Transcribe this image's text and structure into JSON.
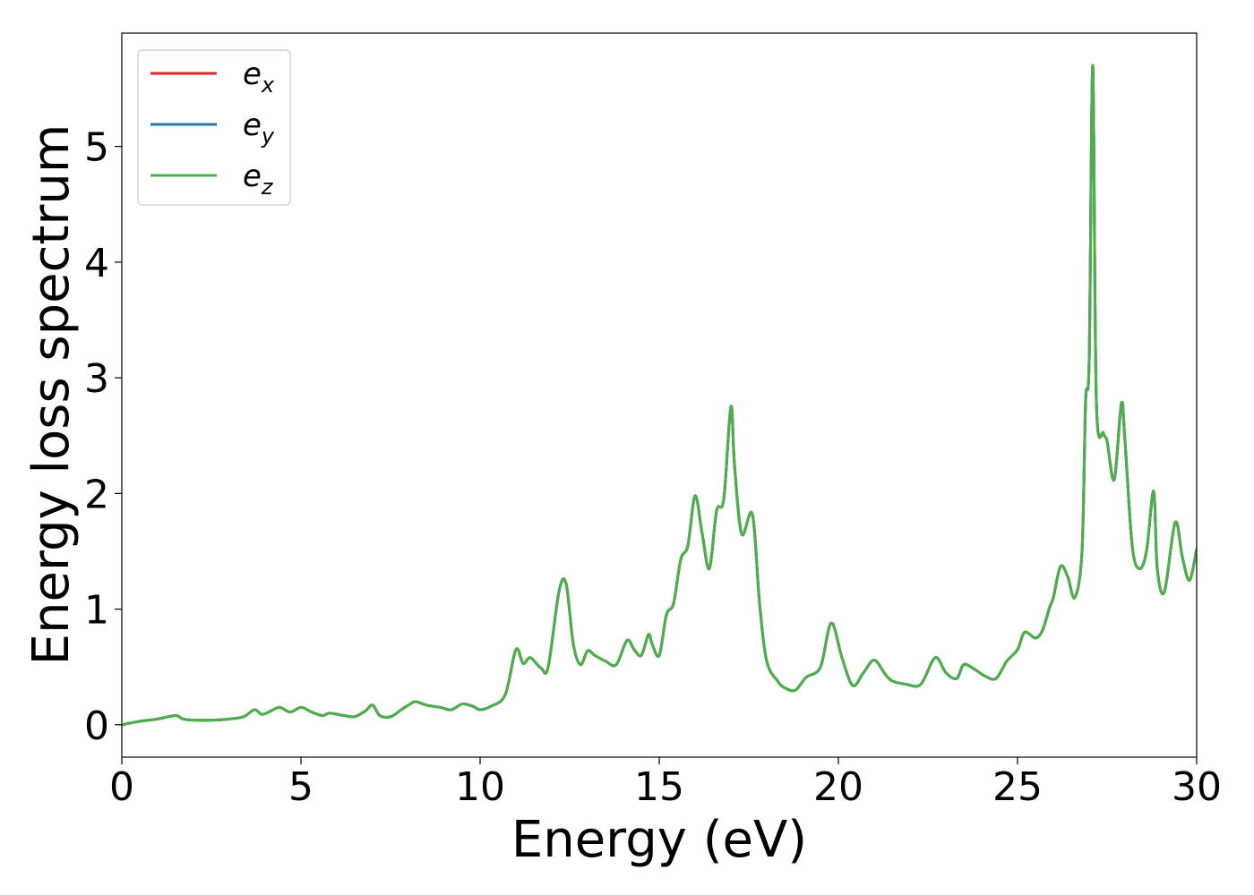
{
  "chart_data": {
    "type": "line",
    "title": "",
    "xlabel": "Energy (eV)",
    "ylabel": "Energy loss spectrum",
    "xlim": [
      0,
      30
    ],
    "ylim": [
      -0.28,
      5.98
    ],
    "xticks": [
      "0",
      "5",
      "10",
      "15",
      "20",
      "25",
      "30"
    ],
    "yticks": [
      "0",
      "1",
      "2",
      "3",
      "4",
      "5"
    ],
    "grid": false,
    "legend_position": "top-left",
    "legend": [
      {
        "base": "e",
        "sub": "x",
        "color": "#d62728"
      },
      {
        "base": "e",
        "sub": "y",
        "color": "#1f77b4"
      },
      {
        "base": "e",
        "sub": "z",
        "color": "#4daf4a"
      }
    ],
    "x": [
      0,
      0.5,
      1,
      1.5,
      1.7,
      2,
      2.5,
      3,
      3.4,
      3.7,
      3.9,
      4.1,
      4.4,
      4.7,
      5,
      5.3,
      5.6,
      5.8,
      6.2,
      6.5,
      6.8,
      7,
      7.2,
      7.5,
      7.8,
      8,
      8.2,
      8.5,
      8.9,
      9.2,
      9.5,
      9.8,
      10,
      10.3,
      10.7,
      11,
      11.2,
      11.4,
      11.7,
      11.9,
      12.2,
      12.4,
      12.6,
      12.8,
      13,
      13.2,
      13.5,
      13.8,
      14.1,
      14.3,
      14.5,
      14.7,
      14.8,
      15,
      15.2,
      15.4,
      15.6,
      15.8,
      16,
      16.2,
      16.4,
      16.6,
      16.8,
      17,
      17.1,
      17.3,
      17.6,
      17.8,
      18,
      18.3,
      18.5,
      18.8,
      19.1,
      19.5,
      19.8,
      20.1,
      20.4,
      20.7,
      21,
      21.3,
      21.5,
      21.9,
      22.3,
      22.7,
      23,
      23.3,
      23.5,
      23.8,
      24.1,
      24.4,
      24.7,
      25,
      25.2,
      25.5,
      25.7,
      25.9,
      26,
      26.2,
      26.4,
      26.6,
      26.8,
      26.9,
      27,
      27.1,
      27.2,
      27.4,
      27.5,
      27.7,
      27.9,
      28,
      28.2,
      28.4,
      28.6,
      28.8,
      28.9,
      29.1,
      29.4,
      29.6,
      29.8,
      30
    ],
    "series": [
      {
        "name": "e_x",
        "color": "#d62728",
        "values": [
          0.0,
          0.03,
          0.05,
          0.08,
          0.05,
          0.04,
          0.04,
          0.05,
          0.07,
          0.13,
          0.09,
          0.11,
          0.15,
          0.11,
          0.15,
          0.11,
          0.08,
          0.1,
          0.08,
          0.07,
          0.12,
          0.17,
          0.08,
          0.07,
          0.13,
          0.17,
          0.2,
          0.17,
          0.15,
          0.13,
          0.18,
          0.16,
          0.13,
          0.16,
          0.26,
          0.65,
          0.53,
          0.58,
          0.49,
          0.5,
          1.15,
          1.22,
          0.7,
          0.52,
          0.64,
          0.6,
          0.55,
          0.52,
          0.73,
          0.65,
          0.6,
          0.78,
          0.7,
          0.6,
          0.95,
          1.05,
          1.43,
          1.55,
          1.98,
          1.65,
          1.35,
          1.85,
          1.95,
          2.75,
          2.25,
          1.65,
          1.82,
          1.05,
          0.55,
          0.38,
          0.32,
          0.3,
          0.41,
          0.5,
          0.88,
          0.58,
          0.34,
          0.45,
          0.56,
          0.44,
          0.38,
          0.35,
          0.35,
          0.58,
          0.45,
          0.4,
          0.52,
          0.48,
          0.42,
          0.4,
          0.55,
          0.65,
          0.8,
          0.75,
          0.82,
          1.02,
          1.1,
          1.37,
          1.28,
          1.1,
          1.5,
          2.8,
          3.15,
          5.7,
          2.8,
          2.52,
          2.45,
          2.12,
          2.78,
          2.45,
          1.55,
          1.35,
          1.5,
          2.02,
          1.35,
          1.15,
          1.75,
          1.45,
          1.25,
          1.52
        ]
      },
      {
        "name": "e_y",
        "color": "#1f77b4",
        "values": [
          0.0,
          0.03,
          0.05,
          0.08,
          0.05,
          0.04,
          0.04,
          0.05,
          0.07,
          0.13,
          0.09,
          0.11,
          0.15,
          0.11,
          0.15,
          0.11,
          0.08,
          0.1,
          0.08,
          0.07,
          0.12,
          0.17,
          0.08,
          0.07,
          0.13,
          0.17,
          0.2,
          0.17,
          0.15,
          0.13,
          0.18,
          0.16,
          0.13,
          0.16,
          0.26,
          0.65,
          0.53,
          0.58,
          0.49,
          0.5,
          1.15,
          1.22,
          0.7,
          0.52,
          0.64,
          0.6,
          0.55,
          0.52,
          0.73,
          0.65,
          0.6,
          0.78,
          0.7,
          0.6,
          0.95,
          1.05,
          1.43,
          1.55,
          1.98,
          1.65,
          1.35,
          1.85,
          1.95,
          2.75,
          2.25,
          1.65,
          1.82,
          1.05,
          0.55,
          0.38,
          0.32,
          0.3,
          0.41,
          0.5,
          0.88,
          0.58,
          0.34,
          0.45,
          0.56,
          0.44,
          0.38,
          0.35,
          0.35,
          0.58,
          0.45,
          0.4,
          0.52,
          0.48,
          0.42,
          0.4,
          0.55,
          0.65,
          0.8,
          0.75,
          0.82,
          1.02,
          1.1,
          1.37,
          1.28,
          1.1,
          1.5,
          2.8,
          3.15,
          5.7,
          2.8,
          2.52,
          2.45,
          2.12,
          2.78,
          2.45,
          1.55,
          1.35,
          1.5,
          2.02,
          1.35,
          1.15,
          1.75,
          1.45,
          1.25,
          1.52
        ]
      },
      {
        "name": "e_z",
        "color": "#4daf4a",
        "values": [
          0.0,
          0.03,
          0.05,
          0.08,
          0.05,
          0.04,
          0.04,
          0.05,
          0.07,
          0.13,
          0.09,
          0.11,
          0.15,
          0.11,
          0.15,
          0.11,
          0.08,
          0.1,
          0.08,
          0.07,
          0.12,
          0.17,
          0.08,
          0.07,
          0.13,
          0.17,
          0.2,
          0.17,
          0.15,
          0.13,
          0.18,
          0.16,
          0.13,
          0.16,
          0.26,
          0.65,
          0.53,
          0.58,
          0.49,
          0.5,
          1.15,
          1.22,
          0.7,
          0.52,
          0.64,
          0.6,
          0.55,
          0.52,
          0.73,
          0.65,
          0.6,
          0.78,
          0.7,
          0.6,
          0.95,
          1.05,
          1.43,
          1.55,
          1.98,
          1.65,
          1.35,
          1.85,
          1.95,
          2.75,
          2.25,
          1.65,
          1.82,
          1.05,
          0.55,
          0.38,
          0.32,
          0.3,
          0.41,
          0.5,
          0.88,
          0.58,
          0.34,
          0.45,
          0.56,
          0.44,
          0.38,
          0.35,
          0.35,
          0.58,
          0.45,
          0.4,
          0.52,
          0.48,
          0.42,
          0.4,
          0.55,
          0.65,
          0.8,
          0.75,
          0.82,
          1.02,
          1.1,
          1.37,
          1.28,
          1.1,
          1.5,
          2.8,
          3.15,
          5.7,
          2.8,
          2.52,
          2.45,
          2.12,
          2.78,
          2.45,
          1.55,
          1.35,
          1.5,
          2.02,
          1.35,
          1.15,
          1.75,
          1.45,
          1.25,
          1.52
        ]
      }
    ]
  }
}
